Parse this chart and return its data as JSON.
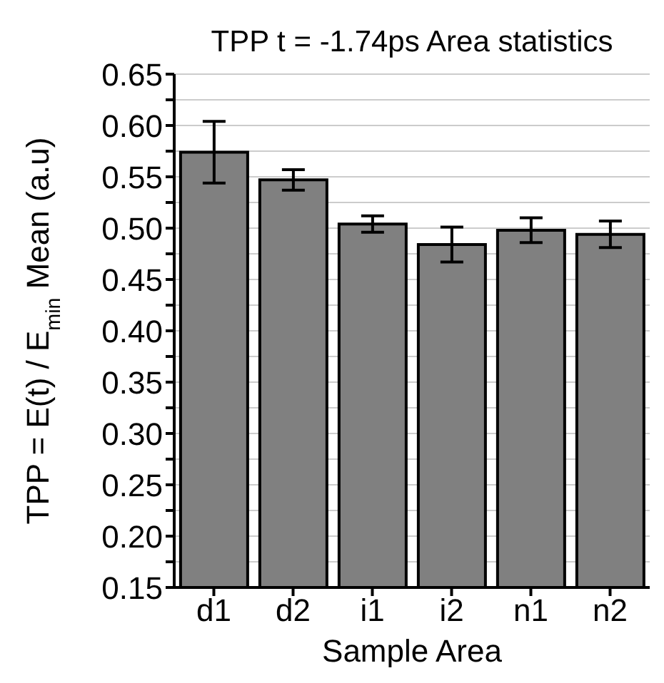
{
  "chart_data": {
    "type": "bar",
    "title": "TPP t = -1.74ps Area statistics",
    "xlabel": "Sample Area",
    "ylabel": "TPP = E(t) / E$_{min}$ Mean (a.u)",
    "categories": [
      "d1",
      "d2",
      "i1",
      "i2",
      "n1",
      "n2"
    ],
    "values": [
      0.574,
      0.547,
      0.504,
      0.484,
      0.498,
      0.494
    ],
    "errors": [
      0.03,
      0.01,
      0.008,
      0.017,
      0.012,
      0.013
    ],
    "color": "#808080",
    "ylim": [
      0.15,
      0.65
    ],
    "yticks": [
      0.15,
      {
        "value": 0.175,
        "label": null
      },
      {
        "value": 0.2,
        "label": "0.20"
      },
      {
        "value": 0.225,
        "label": null
      },
      0.25,
      {
        "value": 0.275,
        "label": null
      },
      {
        "value": 0.3,
        "label": "0.30"
      },
      {
        "value": 0.325,
        "label": null
      },
      0.35,
      {
        "value": 0.375,
        "label": null
      },
      {
        "value": 0.4,
        "label": "0.40"
      },
      {
        "value": 0.425,
        "label": null
      },
      0.45,
      {
        "value": 0.475,
        "label": null
      },
      {
        "value": 0.5,
        "label": "0.50"
      },
      {
        "value": 0.525,
        "label": null
      },
      0.55,
      {
        "value": 0.575,
        "label": null
      },
      {
        "value": 0.6,
        "label": "0.60"
      },
      {
        "value": 0.625,
        "label": null
      },
      0.65
    ],
    "grid": "y"
  }
}
